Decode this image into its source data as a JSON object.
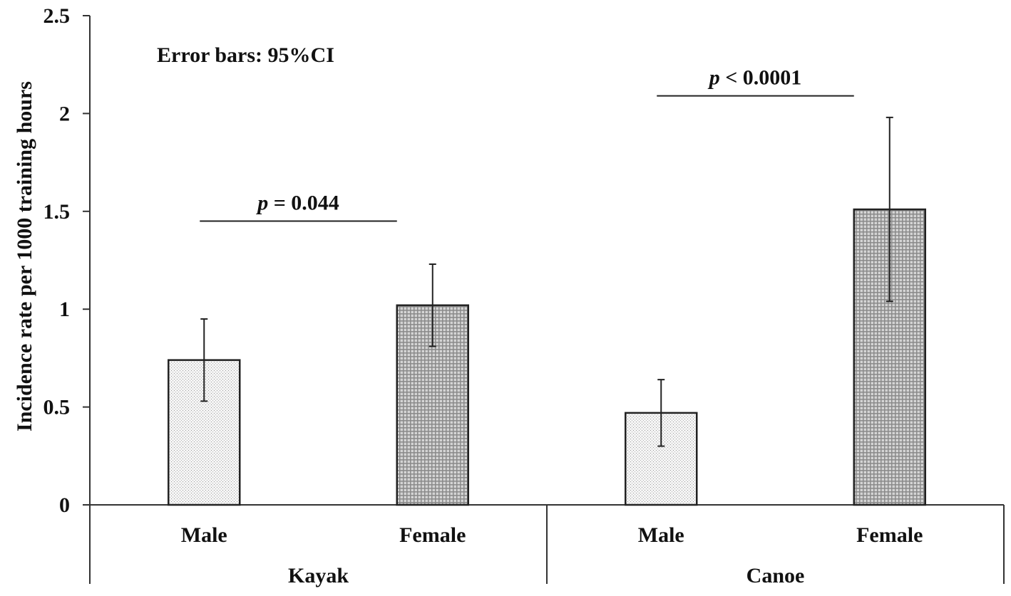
{
  "chart_data": {
    "type": "bar",
    "ylabel": "Incidence rate per 1000 training hours",
    "ylim": [
      0,
      2.5
    ],
    "yticks": [
      0,
      0.5,
      1,
      1.5,
      2,
      2.5
    ],
    "ytick_labels": [
      "0",
      "0.5",
      "1",
      "1.5",
      "2",
      "2.5"
    ],
    "grid": false,
    "groups": [
      {
        "name": "Kayak",
        "bars": [
          {
            "category": "Male",
            "value": 0.74,
            "ci_low": 0.53,
            "ci_high": 0.95
          },
          {
            "category": "Female",
            "value": 1.02,
            "ci_low": 0.81,
            "ci_high": 1.23
          }
        ],
        "significance": {
          "p_symbol": "p",
          "p_text": " = 0.044",
          "y": 1.45
        }
      },
      {
        "name": "Canoe",
        "bars": [
          {
            "category": "Male",
            "value": 0.47,
            "ci_low": 0.3,
            "ci_high": 0.64
          },
          {
            "category": "Female",
            "value": 1.51,
            "ci_low": 1.04,
            "ci_high": 1.98
          }
        ],
        "significance": {
          "p_symbol": "p",
          "p_text": " < 0.0001",
          "y": 2.09
        }
      }
    ],
    "annotations": {
      "error_bars_note": "Error bars: 95%CI"
    },
    "colors": {
      "male_fill": "#f2f2f2",
      "female_fill": "#b8b8b8",
      "outline": "#222222"
    }
  }
}
